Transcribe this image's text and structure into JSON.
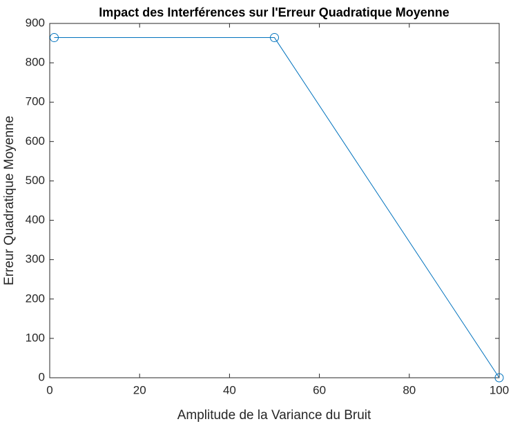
{
  "chart_data": {
    "type": "line",
    "title": "Impact des Interférences sur l'Erreur Quadratique Moyenne",
    "x_label": "Amplitude de la Variance du Bruit",
    "y_label": "Erreur Quadratique Moyenne",
    "x": [
      1,
      50,
      100
    ],
    "values": [
      864,
      864,
      0
    ],
    "color": "#0072bd",
    "marker": "circle",
    "xlim": [
      0,
      100
    ],
    "xticks": [
      0,
      20,
      40,
      60,
      80,
      100
    ],
    "ylim": [
      0,
      900
    ],
    "yticks": [
      0,
      100,
      200,
      300,
      400,
      500,
      600,
      700,
      800,
      900
    ],
    "grid": false
  }
}
